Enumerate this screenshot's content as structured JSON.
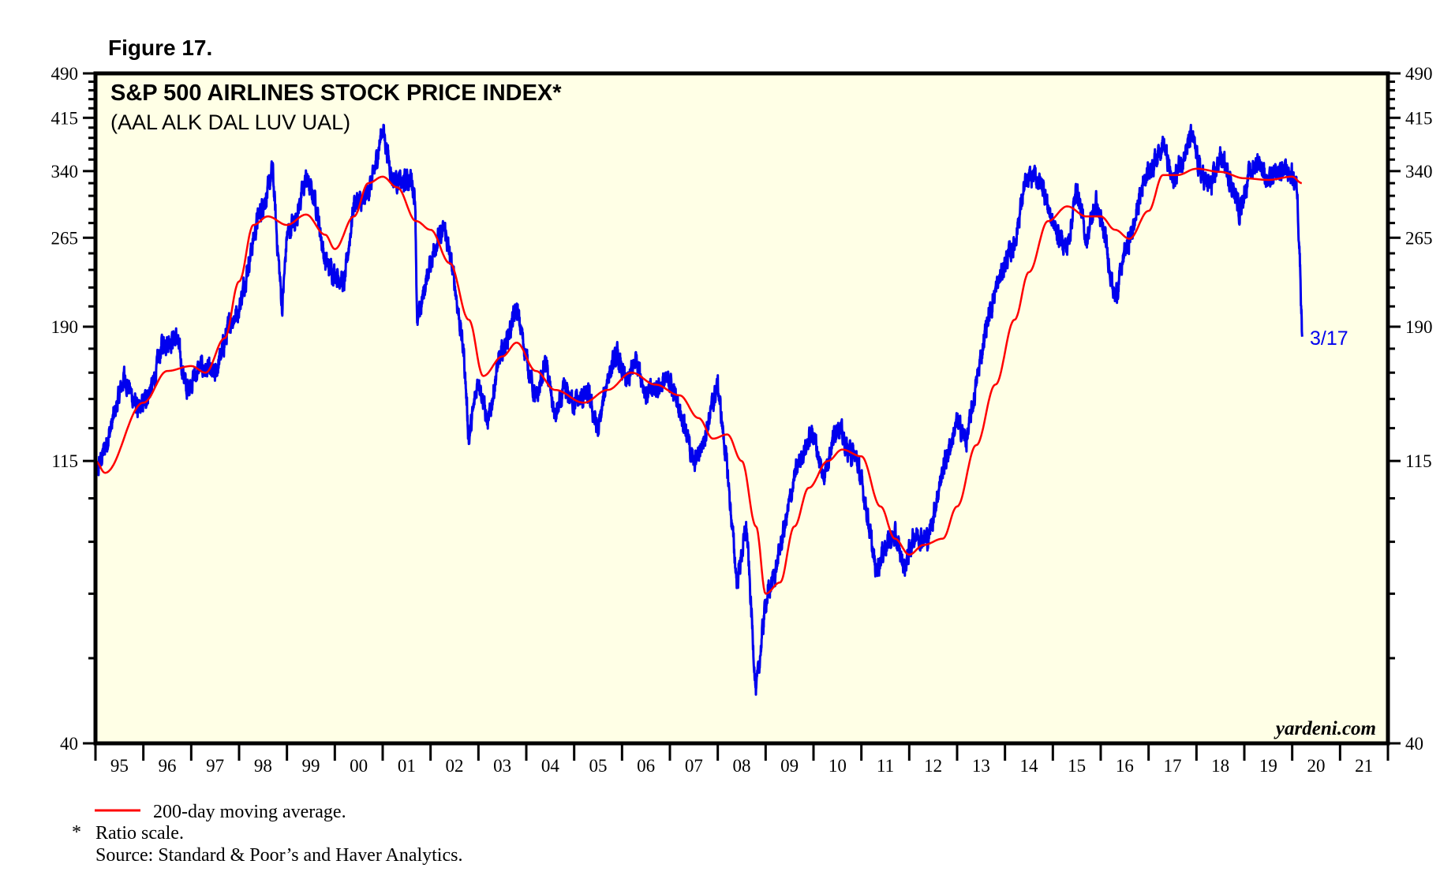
{
  "figure_label": "Figure 17.",
  "chart_data": {
    "type": "line",
    "title": "S&P 500 AIRLINES STOCK PRICE INDEX*",
    "subtitle": "(AAL ALK DAL LUV UAL)",
    "scale": "log",
    "ylim": [
      40,
      490
    ],
    "y_ticks": [
      40,
      115,
      190,
      265,
      340,
      415,
      490
    ],
    "y_minor_step": 15,
    "xlim": [
      1995,
      2022
    ],
    "x_tick_labels": [
      "95",
      "96",
      "97",
      "98",
      "99",
      "00",
      "01",
      "02",
      "03",
      "04",
      "05",
      "06",
      "07",
      "08",
      "09",
      "10",
      "11",
      "12",
      "13",
      "14",
      "15",
      "16",
      "17",
      "18",
      "19",
      "20",
      "21"
    ],
    "end_label": "3/17",
    "watermark": "yardeni.com",
    "series": [
      {
        "name": "S&P 500 Airlines Stock Price Index",
        "color": "#0000ee",
        "x": [
          1995.0,
          1995.3,
          1995.6,
          1995.9,
          1996.2,
          1996.4,
          1996.7,
          1996.9,
          1997.2,
          1997.5,
          1997.8,
          1998.0,
          1998.2,
          1998.4,
          1998.6,
          1998.7,
          1998.8,
          1998.9,
          1999.0,
          1999.2,
          1999.4,
          1999.6,
          1999.8,
          2000.0,
          2000.2,
          2000.4,
          2000.6,
          2000.8,
          2001.0,
          2001.2,
          2001.4,
          2001.6,
          2001.68,
          2001.72,
          2001.9,
          2002.1,
          2002.3,
          2002.5,
          2002.7,
          2002.8,
          2003.0,
          2003.2,
          2003.4,
          2003.6,
          2003.8,
          2004.0,
          2004.2,
          2004.4,
          2004.6,
          2004.8,
          2005.0,
          2005.3,
          2005.5,
          2005.7,
          2005.9,
          2006.1,
          2006.3,
          2006.5,
          2006.8,
          2007.0,
          2007.3,
          2007.5,
          2007.7,
          2007.9,
          2008.0,
          2008.2,
          2008.4,
          2008.6,
          2008.8,
          2009.0,
          2009.2,
          2009.4,
          2009.6,
          2009.8,
          2010.0,
          2010.2,
          2010.5,
          2010.7,
          2010.9,
          2011.1,
          2011.3,
          2011.5,
          2011.7,
          2011.9,
          2012.1,
          2012.4,
          2012.7,
          2013.0,
          2013.2,
          2013.4,
          2013.6,
          2013.8,
          2014.0,
          2014.2,
          2014.4,
          2014.6,
          2014.8,
          2015.0,
          2015.3,
          2015.5,
          2015.7,
          2015.9,
          2016.1,
          2016.3,
          2016.5,
          2016.7,
          2016.9,
          2017.1,
          2017.3,
          2017.5,
          2017.7,
          2017.9,
          2018.1,
          2018.3,
          2018.5,
          2018.7,
          2018.9,
          2019.1,
          2019.3,
          2019.5,
          2019.8,
          2020.0,
          2020.1,
          2020.15,
          2020.21
        ],
        "y": [
          108,
          128,
          158,
          138,
          153,
          179,
          182,
          150,
          164,
          158,
          192,
          203,
          241,
          287,
          314,
          343,
          259,
          203,
          268,
          287,
          331,
          303,
          241,
          233,
          223,
          303,
          303,
          331,
          401,
          331,
          325,
          331,
          307,
          189,
          225,
          259,
          273,
          225,
          170,
          124,
          158,
          131,
          164,
          182,
          203,
          170,
          143,
          167,
          135,
          150,
          143,
          147,
          128,
          158,
          170,
          153,
          170,
          147,
          153,
          155,
          133,
          113,
          124,
          143,
          153,
          111,
          73,
          90,
          48,
          68,
          76,
          90,
          108,
          120,
          128,
          108,
          133,
          120,
          116,
          97,
          76,
          84,
          87,
          77,
          87,
          86,
          111,
          133,
          124,
          153,
          189,
          217,
          241,
          259,
          320,
          335,
          320,
          278,
          254,
          320,
          262,
          303,
          262,
          210,
          250,
          278,
          331,
          349,
          381,
          325,
          355,
          388,
          335,
          320,
          360,
          331,
          293,
          335,
          355,
          325,
          343,
          335,
          320,
          259,
          183
        ]
      },
      {
        "name": "200-day moving average.",
        "color": "#ff0000",
        "x": [
          1995.0,
          1995.2,
          1996.0,
          1996.5,
          1997.0,
          1997.3,
          1997.7,
          1998.0,
          1998.3,
          1998.6,
          1999.0,
          1999.4,
          1999.8,
          2000.0,
          2000.4,
          2000.7,
          2001.0,
          2001.3,
          2001.7,
          2002.0,
          2002.4,
          2002.8,
          2003.1,
          2003.5,
          2003.8,
          2004.2,
          2004.6,
          2005.2,
          2005.7,
          2006.2,
          2006.7,
          2007.2,
          2007.6,
          2007.9,
          2008.2,
          2008.5,
          2008.8,
          2009.0,
          2009.3,
          2009.6,
          2009.9,
          2010.3,
          2010.6,
          2011.0,
          2011.4,
          2011.7,
          2012.0,
          2012.3,
          2012.7,
          2013.0,
          2013.4,
          2013.8,
          2014.2,
          2014.5,
          2014.9,
          2015.3,
          2015.7,
          2016.0,
          2016.3,
          2016.6,
          2017.0,
          2017.3,
          2017.6,
          2018.0,
          2018.5,
          2019.0,
          2019.5,
          2020.0,
          2020.2
        ],
        "y": [
          115,
          110,
          143,
          161,
          164,
          160,
          182,
          225,
          278,
          287,
          278,
          289,
          268,
          254,
          287,
          325,
          333,
          320,
          282,
          273,
          241,
          195,
          158,
          170,
          179,
          161,
          150,
          143,
          150,
          160,
          153,
          147,
          135,
          125,
          127,
          115,
          90,
          70,
          73,
          90,
          104,
          115,
          120,
          117,
          97,
          86,
          81,
          84,
          86,
          97,
          122,
          153,
          195,
          233,
          282,
          298,
          287,
          287,
          273,
          264,
          293,
          335,
          335,
          343,
          339,
          331,
          329,
          333,
          325
        ]
      }
    ]
  },
  "notes": {
    "legend_label": "200-day moving average.",
    "asterisk": "*",
    "ratio_note": "Ratio scale.",
    "source": "Source: Standard & Poor’s and Haver Analytics."
  }
}
